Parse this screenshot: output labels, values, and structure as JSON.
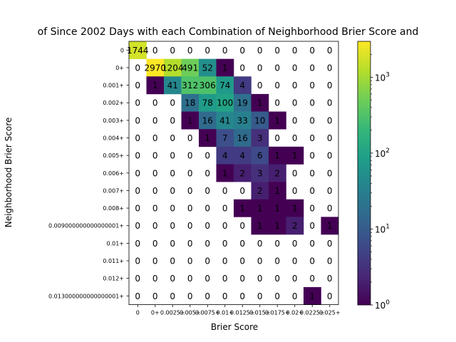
{
  "chart_data": {
    "type": "heatmap",
    "title": "of Since 2002 Days with each Combination of Neighborhood Brier Score and",
    "xlabel": "Brier Score",
    "ylabel": "Neighborhood Brier Score",
    "x_tick_labels": [
      "0",
      "0+",
      "0.0025+",
      "0.005+",
      "0.0075+",
      "0.01+",
      "0.0125+",
      "0.015+",
      "0.0175+",
      "0.02+",
      "0.0225+",
      "0.025+"
    ],
    "y_tick_labels": [
      "0",
      "0+",
      "0.001+",
      "0.002+",
      "0.003+",
      "0.004+",
      "0.005+",
      "0.006+",
      "0.007+",
      "0.008+",
      "0.009000000000000001+",
      "0.01+",
      "0.011+",
      "0.012+",
      "0.013000000000000001+"
    ],
    "values": [
      [
        1744,
        0,
        0,
        0,
        0,
        0,
        0,
        0,
        0,
        0,
        0,
        0
      ],
      [
        0,
        2970,
        1204,
        491,
        52,
        1,
        0,
        0,
        0,
        0,
        0,
        0
      ],
      [
        0,
        1,
        41,
        312,
        306,
        74,
        4,
        0,
        0,
        0,
        0,
        0
      ],
      [
        0,
        0,
        0,
        18,
        78,
        100,
        19,
        1,
        0,
        0,
        0,
        0
      ],
      [
        0,
        0,
        0,
        1,
        16,
        41,
        33,
        10,
        1,
        0,
        0,
        0
      ],
      [
        0,
        0,
        0,
        0,
        1,
        7,
        16,
        3,
        0,
        0,
        0,
        0
      ],
      [
        0,
        0,
        0,
        0,
        0,
        4,
        4,
        6,
        1,
        1,
        0,
        0
      ],
      [
        0,
        0,
        0,
        0,
        0,
        1,
        2,
        3,
        2,
        0,
        0,
        0
      ],
      [
        0,
        0,
        0,
        0,
        0,
        0,
        0,
        2,
        1,
        0,
        0,
        0
      ],
      [
        0,
        0,
        0,
        0,
        0,
        0,
        1,
        1,
        1,
        1,
        0,
        0
      ],
      [
        0,
        0,
        0,
        0,
        0,
        0,
        0,
        1,
        1,
        2,
        0,
        1
      ],
      [
        0,
        0,
        0,
        0,
        0,
        0,
        0,
        0,
        0,
        0,
        0,
        0
      ],
      [
        0,
        0,
        0,
        0,
        0,
        0,
        0,
        0,
        0,
        0,
        0,
        0
      ],
      [
        0,
        0,
        0,
        0,
        0,
        0,
        0,
        0,
        0,
        0,
        0,
        0
      ],
      [
        0,
        0,
        0,
        0,
        0,
        0,
        0,
        0,
        0,
        0,
        1,
        0
      ]
    ],
    "color_scale": "log",
    "colormap": "viridis",
    "zero_cells": "blank",
    "colorbar": {
      "range": [
        1,
        2970
      ],
      "ticks": [
        {
          "value": 1,
          "base": "10",
          "exp": "0"
        },
        {
          "value": 10,
          "base": "10",
          "exp": "1"
        },
        {
          "value": 100,
          "base": "10",
          "exp": "2"
        },
        {
          "value": 1000,
          "base": "10",
          "exp": "3"
        }
      ]
    },
    "grid": false
  }
}
